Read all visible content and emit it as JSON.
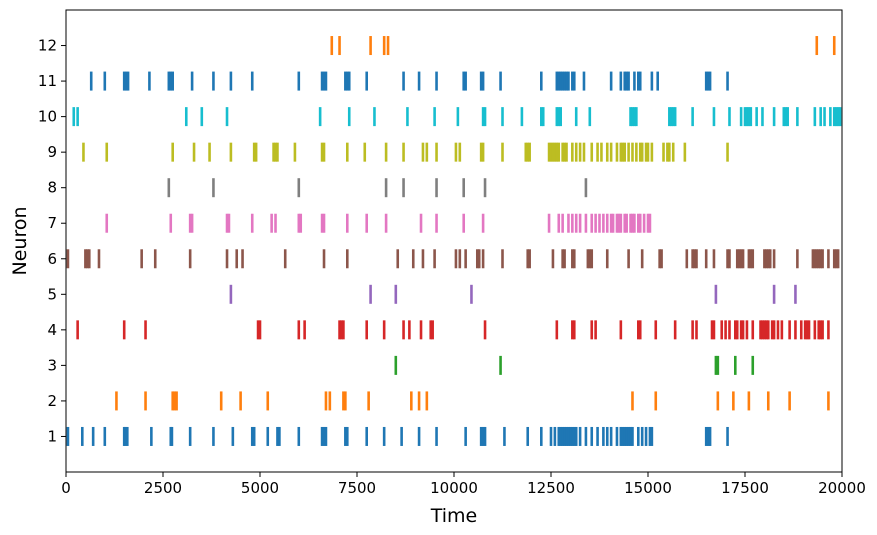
{
  "chart_data": {
    "type": "scatter",
    "subtype": "raster",
    "title": "",
    "xlabel": "Time",
    "ylabel": "Neuron",
    "xlim": [
      0,
      20000
    ],
    "ylim": [
      0,
      13
    ],
    "grid": false,
    "legend": "none",
    "x_ticks": [
      {
        "value": 0,
        "label": "0"
      },
      {
        "value": 2500,
        "label": "2500"
      },
      {
        "value": 5000,
        "label": "5000"
      },
      {
        "value": 7500,
        "label": "7500"
      },
      {
        "value": 10000,
        "label": "10000"
      },
      {
        "value": 12500,
        "label": "12500"
      },
      {
        "value": 15000,
        "label": "15000"
      },
      {
        "value": 17500,
        "label": "17500"
      },
      {
        "value": 20000,
        "label": "20000"
      }
    ],
    "y_ticks": [
      {
        "value": 1,
        "label": "1"
      },
      {
        "value": 2,
        "label": "2"
      },
      {
        "value": 3,
        "label": "3"
      },
      {
        "value": 4,
        "label": "4"
      },
      {
        "value": 5,
        "label": "5"
      },
      {
        "value": 6,
        "label": "6"
      },
      {
        "value": 7,
        "label": "7"
      },
      {
        "value": 8,
        "label": "8"
      },
      {
        "value": 9,
        "label": "9"
      },
      {
        "value": 10,
        "label": "10"
      },
      {
        "value": 11,
        "label": "11"
      },
      {
        "value": 12,
        "label": "12"
      }
    ],
    "series": [
      {
        "neuron": 1,
        "color": "#1f77b4",
        "spike_times": [
          50,
          420,
          700,
          1000,
          1500,
          1530,
          1580,
          2200,
          2700,
          2730,
          3200,
          3800,
          4300,
          4800,
          4850,
          5200,
          5450,
          5500,
          6000,
          6600,
          6650,
          6700,
          7200,
          7250,
          7750,
          8200,
          8650,
          9100,
          9550,
          10300,
          10700,
          10750,
          10800,
          11300,
          11900,
          12250,
          12500,
          12600,
          12700,
          12750,
          12800,
          12850,
          12900,
          12950,
          13000,
          13050,
          13100,
          13150,
          13250,
          13400,
          13550,
          13700,
          13850,
          13950,
          14050,
          14200,
          14300,
          14350,
          14400,
          14450,
          14500,
          14550,
          14600,
          14750,
          14850,
          14950,
          15050,
          15100,
          16500,
          16550,
          16600,
          17050
        ]
      },
      {
        "neuron": 2,
        "color": "#ff7f0e",
        "spike_times": [
          1300,
          2050,
          2750,
          2800,
          2850,
          4000,
          4500,
          5200,
          6700,
          6800,
          7150,
          7200,
          7800,
          8900,
          9100,
          9300,
          14600,
          15200,
          16800,
          17200,
          17600,
          18100,
          18650,
          19650
        ]
      },
      {
        "neuron": 3,
        "color": "#2ca02c",
        "spike_times": [
          8500,
          11200,
          16750,
          16800,
          17250,
          17700
        ]
      },
      {
        "neuron": 4,
        "color": "#d62728",
        "spike_times": [
          300,
          1500,
          2050,
          4950,
          5000,
          6000,
          6150,
          7050,
          7100,
          7150,
          7750,
          8200,
          8700,
          8850,
          9150,
          9400,
          9450,
          10800,
          12650,
          13050,
          13100,
          13550,
          13650,
          14300,
          14750,
          14800,
          15200,
          15700,
          16150,
          16250,
          16650,
          16700,
          16900,
          17000,
          17100,
          17250,
          17300,
          17400,
          17450,
          17550,
          17700,
          17900,
          17950,
          18000,
          18050,
          18100,
          18200,
          18250,
          18350,
          18450,
          18650,
          18800,
          18950,
          19050,
          19100,
          19150,
          19300,
          19400,
          19450,
          19500,
          19650
        ]
      },
      {
        "neuron": 5,
        "color": "#9467bd",
        "spike_times": [
          4250,
          7850,
          8500,
          10450,
          16750,
          18250,
          18800
        ]
      },
      {
        "neuron": 6,
        "color": "#8c564b",
        "spike_times": [
          50,
          500,
          550,
          600,
          850,
          1950,
          2300,
          3200,
          4150,
          4400,
          4550,
          5650,
          6650,
          7250,
          8550,
          8950,
          9200,
          9500,
          10050,
          10150,
          10300,
          10600,
          10650,
          10750,
          11250,
          11900,
          11950,
          12550,
          12800,
          12850,
          13050,
          13100,
          13450,
          13500,
          13550,
          13950,
          14500,
          14850,
          15300,
          15350,
          16000,
          16150,
          16200,
          16250,
          16500,
          16700,
          17050,
          17100,
          17300,
          17350,
          17400,
          17450,
          17600,
          17650,
          17700,
          18000,
          18050,
          18100,
          18150,
          18250,
          18850,
          19250,
          19300,
          19350,
          19400,
          19450,
          19500,
          19650,
          19800,
          19850,
          19900
        ]
      },
      {
        "neuron": 7,
        "color": "#e377c2",
        "spike_times": [
          1050,
          2700,
          3200,
          3250,
          4150,
          4200,
          4800,
          5300,
          5400,
          6000,
          6050,
          6600,
          6650,
          7250,
          7750,
          8250,
          9150,
          9550,
          10250,
          10750,
          12450,
          12700,
          12800,
          12950,
          13050,
          13150,
          13250,
          13400,
          13550,
          13650,
          13750,
          13850,
          13950,
          14050,
          14100,
          14200,
          14250,
          14300,
          14400,
          14450,
          14550,
          14600,
          14650,
          14750,
          14800,
          14900,
          15000,
          15050
        ]
      },
      {
        "neuron": 8,
        "color": "#7f7f7f",
        "spike_times": [
          2650,
          3800,
          6000,
          8250,
          8700,
          9550,
          10250,
          10800,
          13400
        ]
      },
      {
        "neuron": 9,
        "color": "#bcbd22",
        "spike_times": [
          450,
          1050,
          2750,
          3300,
          3700,
          4250,
          4850,
          4900,
          5350,
          5400,
          5450,
          5900,
          6600,
          6650,
          7250,
          7700,
          8250,
          8700,
          9200,
          9300,
          9550,
          10050,
          10150,
          10700,
          10750,
          11250,
          11850,
          11900,
          11950,
          12450,
          12500,
          12550,
          12600,
          12650,
          12700,
          12800,
          12850,
          12900,
          13050,
          13150,
          13250,
          13350,
          13550,
          13700,
          13800,
          13950,
          14050,
          14200,
          14300,
          14350,
          14400,
          14500,
          14600,
          14700,
          14800,
          14850,
          14950,
          15000,
          15100,
          15400,
          15500,
          15550,
          15650,
          15950,
          17050
        ]
      },
      {
        "neuron": 10,
        "color": "#17becf",
        "spike_times": [
          200,
          300,
          3100,
          3500,
          4150,
          6550,
          7300,
          7950,
          8800,
          9500,
          10100,
          10750,
          10800,
          11250,
          11750,
          12250,
          12300,
          12650,
          12700,
          12750,
          13150,
          13500,
          14550,
          14600,
          14650,
          14700,
          15550,
          15600,
          15650,
          15700,
          16150,
          16700,
          17100,
          17400,
          17500,
          17550,
          17600,
          17650,
          17800,
          17950,
          18250,
          18500,
          18550,
          18600,
          18850,
          19300,
          19450,
          19550,
          19700,
          19800,
          19850,
          19900,
          19950
        ]
      },
      {
        "neuron": 11,
        "color": "#1f77b4",
        "spike_times": [
          650,
          1000,
          1500,
          1550,
          1600,
          2150,
          2650,
          2700,
          2750,
          3250,
          3800,
          4250,
          4800,
          6000,
          6600,
          6650,
          6700,
          7200,
          7250,
          7300,
          7750,
          8700,
          9100,
          9550,
          10250,
          10300,
          10700,
          10750,
          11200,
          12250,
          12650,
          12700,
          12750,
          12800,
          12850,
          12900,
          12950,
          13050,
          13100,
          13350,
          14050,
          14300,
          14400,
          14450,
          14500,
          14650,
          14750,
          14800,
          15100,
          15250,
          16500,
          16550,
          16600,
          17050
        ]
      },
      {
        "neuron": 12,
        "color": "#ff7f0e",
        "spike_times": [
          6850,
          7050,
          7850,
          8200,
          8300,
          19350,
          19800
        ]
      }
    ]
  }
}
